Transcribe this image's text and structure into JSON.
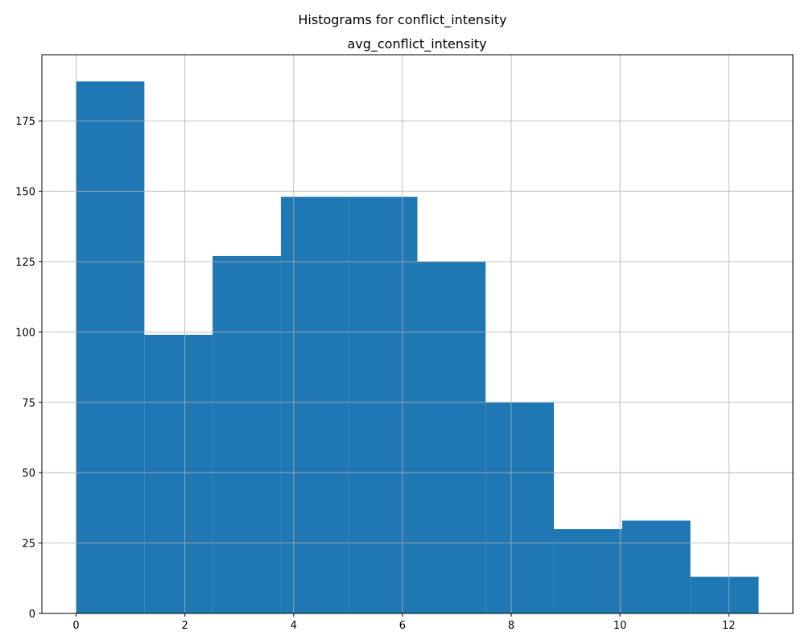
{
  "figure": {
    "suptitle": "Histograms for conflict_intensity"
  },
  "chart_data": {
    "type": "bar",
    "histogram": true,
    "title": "avg_conflict_intensity",
    "xlabel": "",
    "ylabel": "",
    "bin_edges": [
      0.0,
      1.255,
      2.51,
      3.765,
      5.02,
      6.275,
      7.53,
      8.785,
      10.04,
      11.295,
      12.55
    ],
    "values": [
      189,
      99,
      127,
      148,
      148,
      125,
      75,
      30,
      33,
      13
    ],
    "xlim": [
      -0.63,
      13.18
    ],
    "ylim": [
      0,
      198.5
    ],
    "xticks": [
      0,
      2,
      4,
      6,
      8,
      10,
      12
    ],
    "yticks": [
      0,
      25,
      50,
      75,
      100,
      125,
      150,
      175
    ],
    "grid": true,
    "bar_color": "#1f77b4"
  }
}
